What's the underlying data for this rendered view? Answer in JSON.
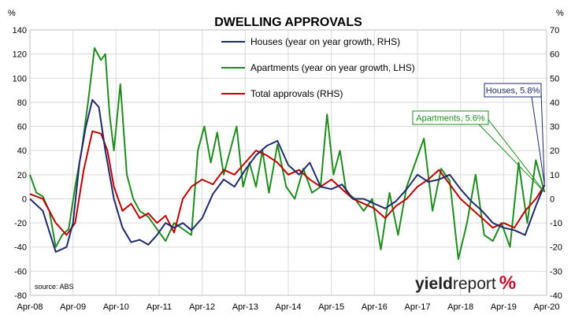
{
  "chart_data": {
    "type": "line",
    "title": "DWELLING APPROVALS",
    "ylabel_left": "%",
    "ylabel_right": "%",
    "ylim_left": [
      -80,
      140
    ],
    "ylim_right": [
      -40,
      70
    ],
    "left_ticks": [
      "140",
      "120",
      "100",
      "80",
      "60",
      "40",
      "20",
      "0",
      "-20",
      "-40",
      "-60",
      "-80"
    ],
    "right_ticks": [
      "70",
      "60",
      "50",
      "40",
      "30",
      "20",
      "10",
      "0",
      "-10",
      "-20",
      "-30",
      "-40"
    ],
    "x_ticks": [
      "Apr-08",
      "Apr-09",
      "Apr-10",
      "Apr-11",
      "Apr-12",
      "Apr-13",
      "Apr-14",
      "Apr-15",
      "Apr-16",
      "Apr-17",
      "Apr-18",
      "Apr-19",
      "Apr-20"
    ],
    "grid": true,
    "legend_position": "top-center",
    "source": "source: ABS",
    "logo": "yieldreport %",
    "colors": {
      "houses": "#1f2a6b",
      "apartments": "#1f8c1f",
      "total": "#c00000"
    },
    "series": [
      {
        "name": "Houses (year on year growth, RHS)",
        "axis": "right",
        "x": [
          2008.25,
          2008.55,
          2008.85,
          2009.1,
          2009.25,
          2009.4,
          2009.55,
          2009.7,
          2009.85,
          2010.0,
          2010.2,
          2010.4,
          2010.6,
          2010.8,
          2011.0,
          2011.2,
          2011.4,
          2011.6,
          2011.8,
          2012.0,
          2012.25,
          2012.5,
          2012.75,
          2013.0,
          2013.25,
          2013.5,
          2013.75,
          2014.0,
          2014.25,
          2014.5,
          2014.75,
          2015.0,
          2015.25,
          2015.5,
          2015.75,
          2016.0,
          2016.25,
          2016.5,
          2016.75,
          2017.0,
          2017.25,
          2017.5,
          2017.75,
          2018.0,
          2018.25,
          2018.5,
          2018.75,
          2019.0,
          2019.25,
          2019.5,
          2019.75,
          2020.0,
          2020.2
        ],
        "values": [
          0,
          -5,
          -22,
          -20,
          -10,
          15,
          30,
          41,
          38,
          20,
          0,
          -12,
          -18,
          -17,
          -19,
          -15,
          -10,
          -12,
          -10,
          -13,
          -8,
          2,
          8,
          5,
          12,
          18,
          22,
          24,
          14,
          10,
          15,
          5,
          4,
          6,
          0,
          0,
          -2,
          -4,
          -1,
          4,
          10,
          7,
          8,
          10,
          4,
          -1,
          -5,
          -10,
          -12,
          -13,
          -15,
          -3,
          5.8
        ]
      },
      {
        "name": "Apartments (year on year growth, LHS)",
        "axis": "left",
        "x": [
          2008.25,
          2008.4,
          2008.55,
          2008.7,
          2008.85,
          2009.0,
          2009.15,
          2009.3,
          2009.45,
          2009.6,
          2009.75,
          2009.9,
          2010.0,
          2010.1,
          2010.2,
          2010.35,
          2010.5,
          2010.65,
          2010.8,
          2011.0,
          2011.2,
          2011.4,
          2011.6,
          2011.8,
          2012.0,
          2012.15,
          2012.3,
          2012.45,
          2012.6,
          2012.75,
          2012.9,
          2013.05,
          2013.2,
          2013.35,
          2013.5,
          2013.65,
          2013.8,
          2014.0,
          2014.2,
          2014.4,
          2014.6,
          2014.8,
          2015.0,
          2015.15,
          2015.3,
          2015.45,
          2015.6,
          2015.8,
          2016.0,
          2016.2,
          2016.4,
          2016.6,
          2016.8,
          2017.0,
          2017.2,
          2017.4,
          2017.6,
          2017.8,
          2018.0,
          2018.2,
          2018.4,
          2018.6,
          2018.8,
          2019.0,
          2019.2,
          2019.4,
          2019.6,
          2019.8,
          2020.0,
          2020.2
        ],
        "values": [
          20,
          5,
          2,
          -10,
          -40,
          -30,
          -25,
          10,
          40,
          80,
          125,
          115,
          120,
          70,
          40,
          95,
          20,
          0,
          -10,
          -15,
          -25,
          -35,
          -20,
          -25,
          -30,
          40,
          60,
          30,
          55,
          20,
          40,
          60,
          10,
          30,
          10,
          40,
          5,
          45,
          10,
          0,
          25,
          5,
          10,
          70,
          20,
          40,
          5,
          0,
          -10,
          0,
          -42,
          5,
          -30,
          10,
          30,
          50,
          -10,
          25,
          15,
          -50,
          -20,
          20,
          -30,
          -35,
          -20,
          -40,
          30,
          -20,
          32,
          5.6
        ]
      },
      {
        "name": "Total approvals (RHS)",
        "axis": "right",
        "x": [
          2008.25,
          2008.55,
          2008.85,
          2009.1,
          2009.3,
          2009.5,
          2009.7,
          2009.9,
          2010.05,
          2010.2,
          2010.4,
          2010.6,
          2010.8,
          2011.0,
          2011.2,
          2011.4,
          2011.6,
          2011.8,
          2012.0,
          2012.25,
          2012.5,
          2012.75,
          2013.0,
          2013.25,
          2013.5,
          2013.75,
          2014.0,
          2014.25,
          2014.5,
          2014.75,
          2015.0,
          2015.25,
          2015.5,
          2015.75,
          2016.0,
          2016.25,
          2016.5,
          2016.75,
          2017.0,
          2017.25,
          2017.5,
          2017.75,
          2018.0,
          2018.25,
          2018.5,
          2018.75,
          2019.0,
          2019.25,
          2019.5,
          2019.75,
          2020.0,
          2020.2
        ],
        "values": [
          2,
          0,
          -10,
          -15,
          -10,
          12,
          28,
          27,
          20,
          5,
          -5,
          -2,
          -8,
          -6,
          -10,
          -7,
          -14,
          0,
          5,
          8,
          6,
          12,
          10,
          15,
          20,
          18,
          15,
          10,
          12,
          8,
          5,
          8,
          4,
          0,
          -2,
          -4,
          -8,
          -3,
          0,
          5,
          8,
          12,
          6,
          0,
          -4,
          -8,
          -12,
          -10,
          -12,
          -5,
          0,
          5.6
        ]
      }
    ],
    "annotations": [
      {
        "text": "Houses, 5.8%",
        "series": "Houses (year on year growth, RHS)"
      },
      {
        "text": "Apartments, 5.6%",
        "series": "Apartments (year on year growth, LHS)"
      }
    ]
  }
}
